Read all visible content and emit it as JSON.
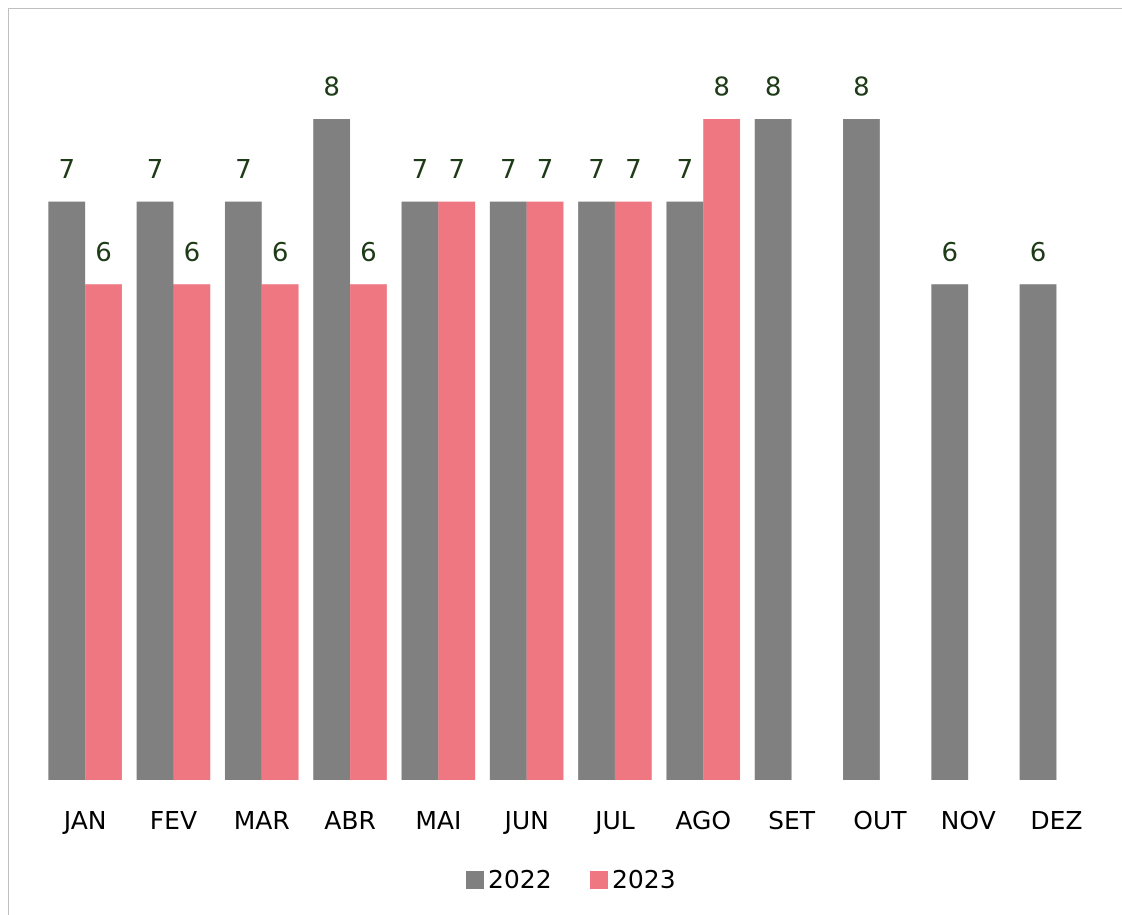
{
  "chart_data": {
    "type": "bar",
    "categories": [
      "JAN",
      "FEV",
      "MAR",
      "ABR",
      "MAI",
      "JUN",
      "JUL",
      "AGO",
      "SET",
      "OUT",
      "NOV",
      "DEZ"
    ],
    "series": [
      {
        "name": "2022",
        "color": "#808080",
        "values": [
          7,
          7,
          7,
          8,
          7,
          7,
          7,
          7,
          8,
          8,
          6,
          6
        ]
      },
      {
        "name": "2023",
        "color": "#ee7781",
        "values": [
          6,
          6,
          6,
          6,
          7,
          7,
          7,
          8,
          null,
          null,
          null,
          null
        ]
      }
    ],
    "label_color": "#1e3b17",
    "legend": "bottom"
  }
}
